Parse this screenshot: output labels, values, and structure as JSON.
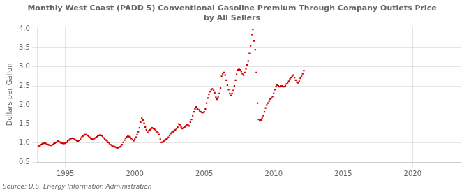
{
  "chart_data": {
    "type": "scatter",
    "title": "Monthly West Coast (PADD 5) Conventional Gasoline Premium Through Company Outlets Price\nby All Sellers",
    "ylabel": "Dollars per Gallon",
    "annotations": [
      "Source: U.S. Energy Information Administration"
    ],
    "color": "#cc0000",
    "marker": "square",
    "grid": true,
    "xlim": [
      1993.0,
      2023.5
    ],
    "ylim": [
      0.5,
      4.05
    ],
    "xticks": [
      1995,
      2000,
      2005,
      2010,
      2015,
      2020
    ],
    "yticks": [
      0.5,
      {
        "value": 1.0,
        "label": "1.0"
      },
      1.5,
      {
        "value": 2.0,
        "label": "2.0"
      },
      2.5,
      {
        "value": 3.0,
        "label": "3.0"
      },
      3.5,
      {
        "value": 4.0,
        "label": "4.0"
      }
    ],
    "x": [
      1993.0,
      1993.083,
      1993.167,
      1993.25,
      1993.333,
      1993.417,
      1993.5,
      1993.583,
      1993.667,
      1993.75,
      1993.833,
      1993.917,
      1994.0,
      1994.083,
      1994.167,
      1994.25,
      1994.333,
      1994.417,
      1994.5,
      1994.583,
      1994.667,
      1994.75,
      1994.833,
      1994.917,
      1995.0,
      1995.083,
      1995.167,
      1995.25,
      1995.333,
      1995.417,
      1995.5,
      1995.583,
      1995.667,
      1995.75,
      1995.833,
      1995.917,
      1996.0,
      1996.083,
      1996.167,
      1996.25,
      1996.333,
      1996.417,
      1996.5,
      1996.583,
      1996.667,
      1996.75,
      1996.833,
      1996.917,
      1997.0,
      1997.083,
      1997.167,
      1997.25,
      1997.333,
      1997.417,
      1997.5,
      1997.583,
      1997.667,
      1997.75,
      1997.833,
      1997.917,
      1998.0,
      1998.083,
      1998.167,
      1998.25,
      1998.333,
      1998.417,
      1998.5,
      1998.583,
      1998.667,
      1998.75,
      1998.833,
      1998.917,
      1999.0,
      1999.083,
      1999.167,
      1999.25,
      1999.333,
      1999.417,
      1999.5,
      1999.583,
      1999.667,
      1999.75,
      1999.833,
      1999.917,
      2000.0,
      2000.083,
      2000.167,
      2000.25,
      2000.333,
      2000.417,
      2000.5,
      2000.583,
      2000.667,
      2000.75,
      2000.833,
      2000.917,
      2001.0,
      2001.083,
      2001.167,
      2001.25,
      2001.333,
      2001.417,
      2001.5,
      2001.583,
      2001.667,
      2001.75,
      2001.833,
      2001.917,
      2002.0,
      2002.083,
      2002.167,
      2002.25,
      2002.333,
      2002.417,
      2002.5,
      2002.583,
      2002.667,
      2002.75,
      2002.833,
      2002.917,
      2003.0,
      2003.083,
      2003.167,
      2003.25,
      2003.333,
      2003.417,
      2003.5,
      2003.583,
      2003.667,
      2003.75,
      2003.833,
      2003.917,
      2004.0,
      2004.083,
      2004.167,
      2004.25,
      2004.333,
      2004.417,
      2004.5,
      2004.583,
      2004.667,
      2004.75,
      2004.833,
      2004.917,
      2005.0,
      2005.083,
      2005.167,
      2005.25,
      2005.333,
      2005.417,
      2005.5,
      2005.583,
      2005.667,
      2005.75,
      2005.833,
      2005.917,
      2006.0,
      2006.083,
      2006.167,
      2006.25,
      2006.333,
      2006.417,
      2006.5,
      2006.583,
      2006.667,
      2006.75,
      2006.833,
      2006.917,
      2007.0,
      2007.083,
      2007.167,
      2007.25,
      2007.333,
      2007.417,
      2007.5,
      2007.583,
      2007.667,
      2007.75,
      2007.833,
      2007.917,
      2008.0,
      2008.083,
      2008.167,
      2008.25,
      2008.333,
      2008.417,
      2008.5,
      2008.583,
      2008.667,
      2008.75,
      2008.833,
      2008.917,
      2009.0,
      2009.083,
      2009.167,
      2009.25,
      2009.333,
      2009.417,
      2009.5,
      2009.583,
      2009.667,
      2009.75,
      2009.833,
      2009.917,
      2010.0,
      2010.083,
      2010.167,
      2010.25,
      2010.333,
      2010.417,
      2010.5,
      2010.583,
      2010.667,
      2010.75,
      2010.833,
      2010.917,
      2011.0,
      2011.083,
      2011.167,
      2011.25,
      2011.333,
      2011.417,
      2011.5,
      2011.583,
      2011.667,
      2011.75,
      2011.833,
      2011.917,
      2012.0,
      2012.083,
      2012.167
    ],
    "values": [
      0.93,
      0.92,
      0.93,
      0.96,
      0.98,
      0.99,
      1.0,
      0.99,
      0.97,
      0.96,
      0.95,
      0.94,
      0.94,
      0.96,
      0.98,
      1.0,
      1.02,
      1.05,
      1.05,
      1.03,
      1.01,
      1.0,
      0.99,
      0.99,
      1.0,
      1.02,
      1.05,
      1.08,
      1.1,
      1.12,
      1.13,
      1.12,
      1.1,
      1.08,
      1.06,
      1.05,
      1.07,
      1.1,
      1.15,
      1.18,
      1.2,
      1.22,
      1.22,
      1.2,
      1.18,
      1.15,
      1.12,
      1.1,
      1.1,
      1.12,
      1.14,
      1.16,
      1.18,
      1.2,
      1.21,
      1.2,
      1.18,
      1.14,
      1.1,
      1.08,
      1.05,
      1.02,
      0.99,
      0.96,
      0.94,
      0.92,
      0.91,
      0.9,
      0.88,
      0.87,
      0.88,
      0.9,
      0.92,
      0.96,
      1.02,
      1.08,
      1.13,
      1.16,
      1.18,
      1.17,
      1.15,
      1.12,
      1.09,
      1.06,
      1.1,
      1.15,
      1.22,
      1.3,
      1.4,
      1.55,
      1.65,
      1.6,
      1.52,
      1.42,
      1.35,
      1.28,
      1.32,
      1.35,
      1.38,
      1.4,
      1.38,
      1.36,
      1.33,
      1.3,
      1.27,
      1.22,
      1.1,
      1.02,
      1.02,
      1.05,
      1.08,
      1.1,
      1.12,
      1.15,
      1.2,
      1.25,
      1.28,
      1.3,
      1.32,
      1.35,
      1.38,
      1.42,
      1.5,
      1.48,
      1.42,
      1.38,
      1.4,
      1.42,
      1.45,
      1.48,
      1.48,
      1.45,
      1.55,
      1.62,
      1.72,
      1.82,
      1.9,
      1.95,
      1.9,
      1.88,
      1.85,
      1.82,
      1.8,
      1.8,
      1.82,
      1.9,
      2.05,
      2.18,
      2.28,
      2.35,
      2.4,
      2.42,
      2.38,
      2.32,
      2.2,
      2.15,
      2.2,
      2.3,
      2.45,
      2.75,
      2.82,
      2.85,
      2.78,
      2.65,
      2.52,
      2.4,
      2.3,
      2.25,
      2.3,
      2.38,
      2.5,
      2.65,
      2.8,
      2.92,
      2.95,
      2.92,
      2.88,
      2.82,
      2.78,
      2.85,
      2.95,
      3.05,
      3.15,
      3.35,
      3.55,
      3.85,
      3.98,
      3.68,
      3.45,
      2.85,
      2.05,
      1.62,
      1.58,
      1.6,
      1.65,
      1.72,
      1.82,
      1.92,
      2.0,
      2.05,
      2.1,
      2.15,
      2.18,
      2.22,
      2.3,
      2.4,
      2.48,
      2.52,
      2.5,
      2.48,
      2.5,
      2.5,
      2.48,
      2.48,
      2.5,
      2.55,
      2.58,
      2.62,
      2.68,
      2.72,
      2.75,
      2.78,
      2.72,
      2.65,
      2.6,
      2.58,
      2.62,
      2.7,
      2.75,
      2.82,
      2.9
    ]
  }
}
